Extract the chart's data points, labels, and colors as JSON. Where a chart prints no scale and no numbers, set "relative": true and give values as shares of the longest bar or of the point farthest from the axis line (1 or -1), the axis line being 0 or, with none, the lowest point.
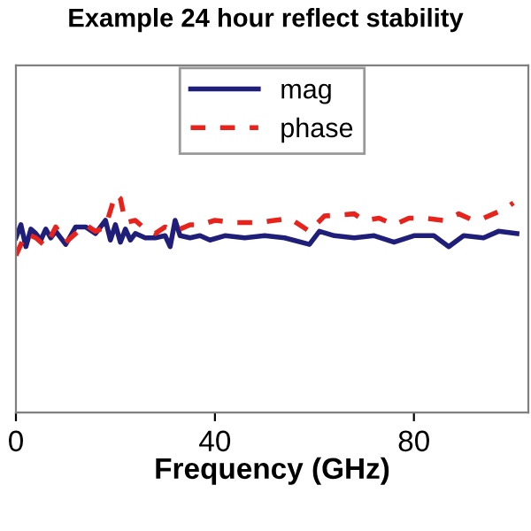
{
  "chart_data": {
    "type": "line",
    "title": "Example 24 hour reflect stability",
    "xlabel": "Frequency (GHz)",
    "relative": true,
    "xlim": [
      0,
      103
    ],
    "xticks": [
      0,
      40,
      80
    ],
    "legend": "top",
    "grid": false,
    "series": [
      {
        "name": "mag",
        "color": "#1f1f7a",
        "line_style": "solid",
        "x": [
          0,
          1,
          2,
          3,
          4,
          5,
          6,
          7,
          8,
          10,
          11,
          12,
          14,
          16,
          18,
          19,
          20,
          21,
          22,
          23,
          24,
          26,
          28,
          30,
          31,
          32,
          33,
          35,
          37,
          39,
          42,
          46,
          50,
          54,
          59,
          61,
          64,
          68,
          72,
          76,
          80,
          84,
          87,
          90,
          94,
          97,
          100.7
        ],
        "values": [
          0.8,
          0.86,
          0.76,
          0.84,
          0.82,
          0.79,
          0.84,
          0.8,
          0.83,
          0.77,
          0.81,
          0.85,
          0.85,
          0.82,
          0.88,
          0.79,
          0.86,
          0.78,
          0.84,
          0.79,
          0.82,
          0.8,
          0.8,
          0.81,
          0.76,
          0.88,
          0.81,
          0.8,
          0.81,
          0.79,
          0.81,
          0.8,
          0.81,
          0.8,
          0.77,
          0.83,
          0.81,
          0.8,
          0.81,
          0.78,
          0.81,
          0.81,
          0.76,
          0.81,
          0.8,
          0.83,
          0.82
        ]
      },
      {
        "name": "phase",
        "color": "#e8231c",
        "line_style": "dashed",
        "x": [
          0,
          2,
          4,
          6,
          8,
          10,
          12,
          14,
          16,
          18,
          20,
          21,
          22,
          24,
          26,
          28,
          30,
          32,
          35,
          37,
          40,
          44,
          49,
          52,
          55,
          59,
          62,
          68,
          70,
          73,
          76,
          79,
          82,
          86,
          89,
          92,
          94,
          98,
          100
        ],
        "values": [
          0.72,
          0.82,
          0.8,
          0.76,
          0.85,
          0.78,
          0.82,
          0.86,
          0.83,
          0.85,
          1.0,
          0.98,
          0.87,
          0.88,
          0.84,
          0.82,
          0.85,
          0.83,
          0.86,
          0.86,
          0.88,
          0.87,
          0.87,
          0.88,
          0.89,
          0.83,
          0.9,
          0.91,
          0.88,
          0.89,
          0.86,
          0.89,
          0.89,
          0.88,
          0.91,
          0.88,
          0.89,
          0.93,
          0.96
        ]
      }
    ]
  }
}
